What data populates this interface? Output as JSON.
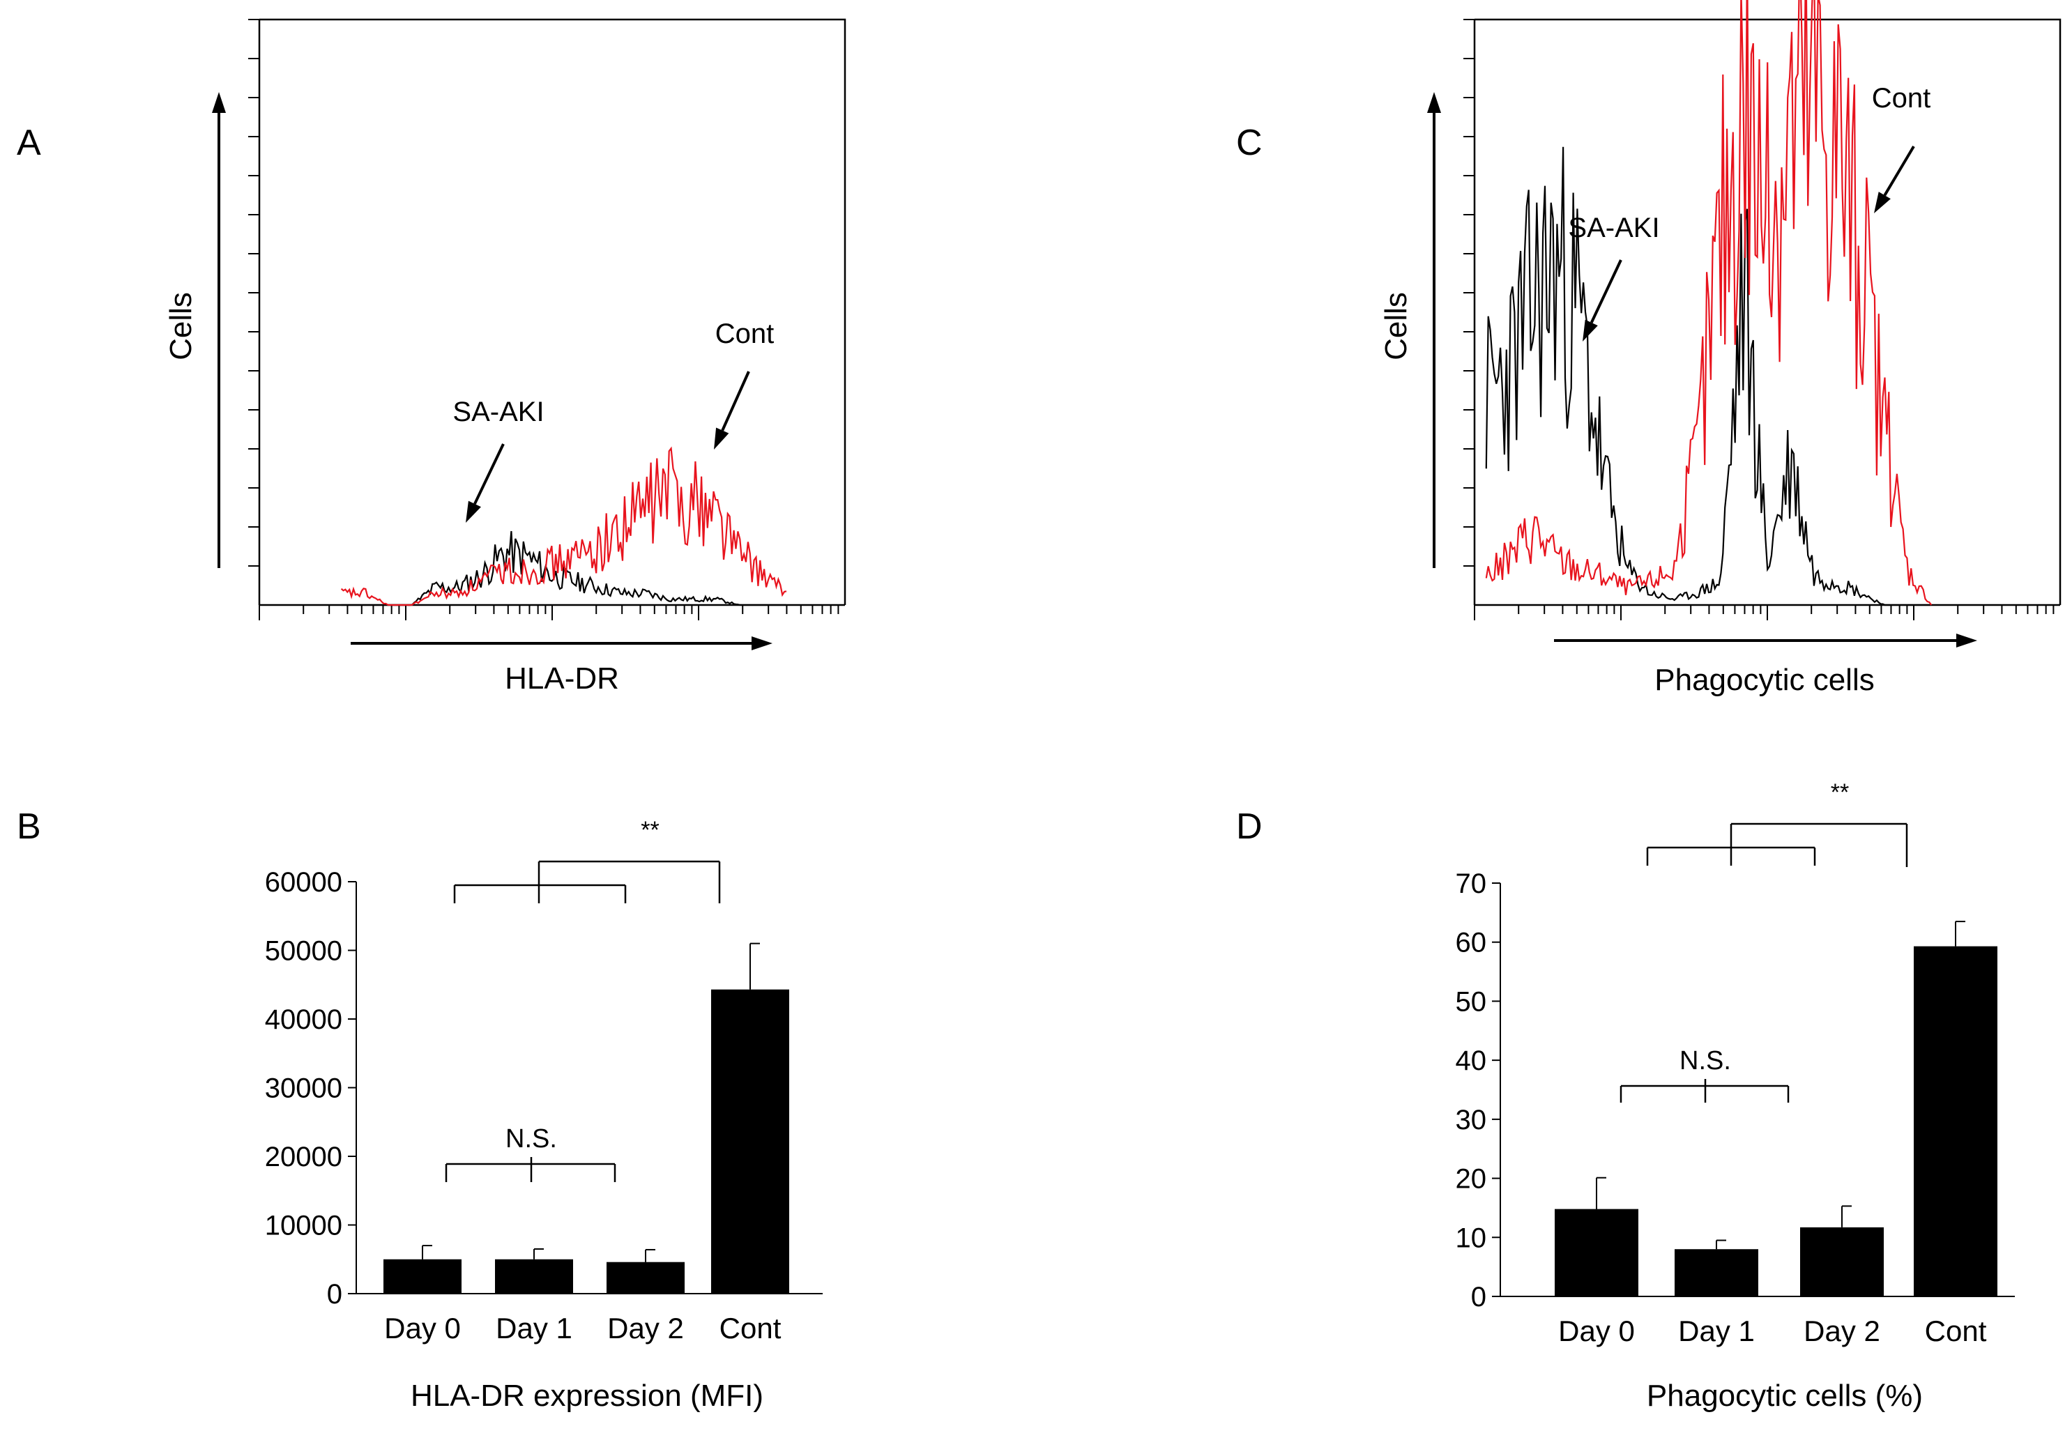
{
  "chart_data": [
    {
      "panel": "A",
      "type": "line",
      "subtype": "flow-cytometry-histogram",
      "xlabel": "HLA-DR",
      "ylabel": "Cells",
      "series": [
        {
          "name": "SA-AKI",
          "color": "#000000",
          "label": "SA-AKI"
        },
        {
          "name": "Cont",
          "color": "#e8141e",
          "label": "Cont"
        }
      ],
      "x": [
        0.14,
        0.18,
        0.22,
        0.26,
        0.3,
        0.34,
        0.38,
        0.42,
        0.46,
        0.5,
        0.54,
        0.58,
        0.62,
        0.66,
        0.7,
        0.74,
        0.78,
        0.82,
        0.86,
        0.9
      ],
      "series_values": {
        "SA-AKI": [
          0,
          0,
          0,
          0,
          0.03,
          0.03,
          0.05,
          0.09,
          0.08,
          0.05,
          0.04,
          0.03,
          0.02,
          0.02,
          0.01,
          0.01,
          0.01,
          0.0,
          0.0,
          0.0
        ],
        "Cont": [
          0.02,
          0.02,
          0.0,
          0.0,
          0.02,
          0.02,
          0.04,
          0.06,
          0.06,
          0.07,
          0.08,
          0.1,
          0.13,
          0.17,
          0.2,
          0.18,
          0.16,
          0.09,
          0.05,
          0.02
        ]
      }
    },
    {
      "panel": "B",
      "type": "bar",
      "categories": [
        "Day 0",
        "Day 1",
        "Day 2",
        "Cont"
      ],
      "values": [
        5000,
        5000,
        4600,
        44300
      ],
      "errors": [
        2000,
        1500,
        1800,
        6700
      ],
      "xlabel": "HLA-DR expression (MFI)",
      "ylabel": "",
      "ylim": [
        0,
        60000
      ],
      "yticks": [
        "0",
        "10000",
        "20000",
        "30000",
        "40000",
        "50000",
        "60000"
      ],
      "annotations": [
        {
          "text": "N.S.",
          "spans": [
            "Day 0",
            "Day 1",
            "Day 2"
          ]
        },
        {
          "text": "**",
          "spans": [
            "Day 0",
            "Day 1",
            "Day 2",
            "Cont"
          ]
        }
      ]
    },
    {
      "panel": "C",
      "type": "line",
      "subtype": "flow-cytometry-histogram",
      "xlabel": "Phagocytic cells",
      "ylabel": "Cells",
      "series": [
        {
          "name": "SA-AKI",
          "color": "#000000",
          "label": "SA-AKI"
        },
        {
          "name": "Cont",
          "color": "#e8141e",
          "label": "Cont"
        }
      ],
      "x": [
        0.02,
        0.06,
        0.1,
        0.14,
        0.18,
        0.22,
        0.26,
        0.3,
        0.34,
        0.38,
        0.42,
        0.46,
        0.5,
        0.54,
        0.58,
        0.62,
        0.66,
        0.7,
        0.74,
        0.78
      ],
      "series_values": {
        "SA-AKI": [
          0.35,
          0.4,
          0.52,
          0.58,
          0.49,
          0.22,
          0.06,
          0.02,
          0.01,
          0.02,
          0.04,
          0.55,
          0.07,
          0.25,
          0.05,
          0.04,
          0.02,
          0.0,
          0.0,
          0.0
        ],
        "Cont": [
          0.05,
          0.08,
          0.13,
          0.08,
          0.06,
          0.05,
          0.03,
          0.04,
          0.06,
          0.25,
          0.62,
          0.88,
          0.65,
          0.82,
          0.86,
          0.8,
          0.58,
          0.3,
          0.06,
          0.0
        ]
      }
    },
    {
      "panel": "D",
      "type": "bar",
      "categories": [
        "Day 0",
        "Day 1",
        "Day 2",
        "Cont"
      ],
      "values": [
        14.8,
        8.0,
        11.7,
        59.3
      ],
      "errors": [
        5.3,
        1.5,
        3.6,
        4.2
      ],
      "xlabel": "Phagocytic cells (%)",
      "ylabel": "",
      "ylim": [
        0,
        70
      ],
      "yticks": [
        "0",
        "10",
        "20",
        "30",
        "40",
        "50",
        "60",
        "70"
      ],
      "annotations": [
        {
          "text": "N.S.",
          "spans": [
            "Day 0",
            "Day 1",
            "Day 2"
          ]
        },
        {
          "text": "**",
          "spans": [
            "Day 0",
            "Day 1",
            "Day 2",
            "Cont"
          ]
        }
      ]
    }
  ],
  "panel_labels": {
    "a": "A",
    "b": "B",
    "c": "C",
    "d": "D"
  }
}
